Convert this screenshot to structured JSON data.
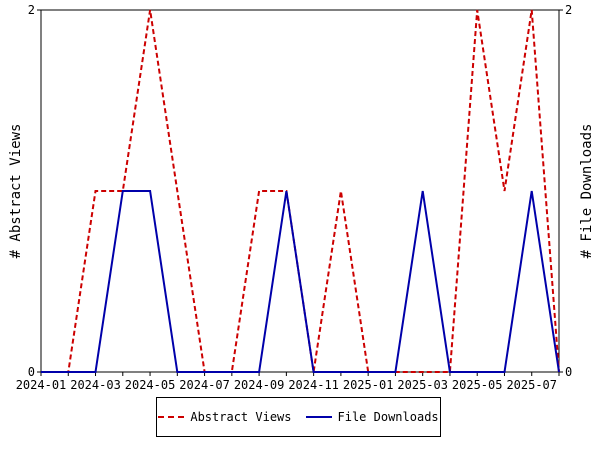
{
  "chart_data": {
    "type": "line",
    "ylabel_left": "# Abstract Views",
    "ylabel_right": "# File Downloads",
    "ylim": [
      0,
      2
    ],
    "yticks": [
      "0",
      "2"
    ],
    "xlim": [
      "2024-01",
      "2025-08"
    ],
    "x_tick_labels": [
      "2024-01",
      "2024-03",
      "2024-05",
      "2024-07",
      "2024-09",
      "2024-11",
      "2025-01",
      "2025-03",
      "2025-05",
      "2025-07"
    ],
    "x": [
      "2024-01",
      "2024-02",
      "2024-03",
      "2024-04",
      "2024-05",
      "2024-06",
      "2024-07",
      "2024-08",
      "2024-09",
      "2024-10",
      "2024-11",
      "2024-12",
      "2025-01",
      "2025-02",
      "2025-03",
      "2025-04",
      "2025-05",
      "2025-06",
      "2025-07",
      "2025-08"
    ],
    "series": [
      {
        "name": "Abstract Views",
        "color": "#cc0000",
        "dash": "dashed",
        "values": [
          0,
          0,
          1,
          1,
          2,
          1,
          0,
          0,
          1,
          1,
          0,
          1,
          0,
          0,
          0,
          0,
          2,
          1,
          2,
          0
        ]
      },
      {
        "name": "File Downloads",
        "color": "#0000aa",
        "dash": "solid",
        "values": [
          0,
          0,
          0,
          1,
          1,
          0,
          0,
          0,
          0,
          1,
          0,
          0,
          0,
          0,
          1,
          0,
          0,
          0,
          1,
          0
        ]
      }
    ],
    "legend_position": "bottom"
  }
}
